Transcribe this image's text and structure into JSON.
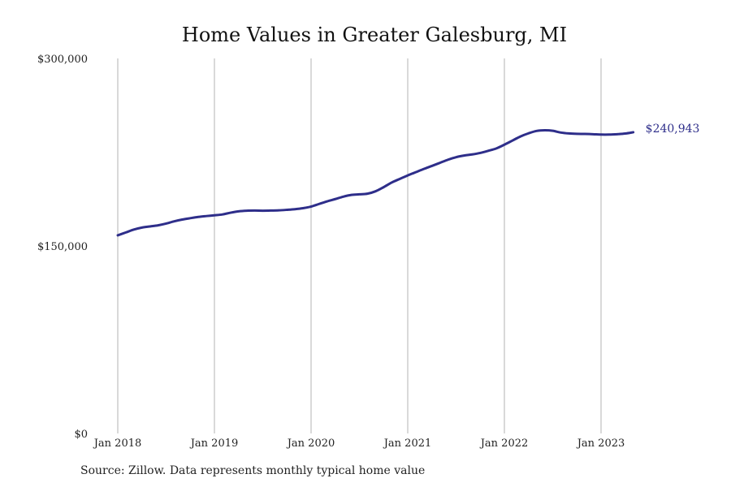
{
  "chart_data": {
    "type": "line",
    "title": "Home Values in Greater Galesburg, MI",
    "xlabel": "",
    "ylabel": "",
    "ylim": [
      0,
      300000
    ],
    "y_ticks": [
      0,
      150000,
      300000
    ],
    "y_tick_labels": [
      "$0",
      "$150,000",
      "$300,000"
    ],
    "x_range": [
      "2018-01",
      "2023-05"
    ],
    "x_ticks": [
      "2018-01",
      "2019-01",
      "2020-01",
      "2021-01",
      "2022-01",
      "2023-01"
    ],
    "x_tick_labels": [
      "Jan 2018",
      "Jan 2019",
      "Jan 2020",
      "Jan 2021",
      "Jan 2022",
      "Jan 2023"
    ],
    "grid": "vertical",
    "line_color": "#2e2e8a",
    "end_label": "$240,943",
    "series": [
      {
        "x": [
          "2018-01",
          "2018-02",
          "2018-03",
          "2018-04",
          "2018-05",
          "2018-06",
          "2018-07",
          "2018-08",
          "2018-09",
          "2018-10",
          "2018-11",
          "2018-12",
          "2019-01",
          "2019-02",
          "2019-03",
          "2019-04",
          "2019-05",
          "2019-06",
          "2019-07",
          "2019-08",
          "2019-09",
          "2019-10",
          "2019-11",
          "2019-12",
          "2020-01",
          "2020-02",
          "2020-03",
          "2020-04",
          "2020-05",
          "2020-06",
          "2020-07",
          "2020-08",
          "2020-09",
          "2020-10",
          "2020-11",
          "2020-12",
          "2021-01",
          "2021-02",
          "2021-03",
          "2021-04",
          "2021-05",
          "2021-06",
          "2021-07",
          "2021-08",
          "2021-09",
          "2021-10",
          "2021-11",
          "2021-12",
          "2022-01",
          "2022-02",
          "2022-03",
          "2022-04",
          "2022-05",
          "2022-06",
          "2022-07",
          "2022-08",
          "2022-09",
          "2022-10",
          "2022-11",
          "2022-12",
          "2023-01",
          "2023-02",
          "2023-03",
          "2023-04",
          "2023-05"
        ],
        "values": [
          158500,
          160800,
          163100,
          164700,
          165600,
          166500,
          167900,
          169700,
          171100,
          172200,
          173200,
          173900,
          174500,
          175200,
          176600,
          177700,
          178200,
          178300,
          178200,
          178300,
          178500,
          178900,
          179400,
          180200,
          181500,
          183600,
          185700,
          187500,
          189400,
          190800,
          191300,
          191800,
          193700,
          197000,
          200700,
          203600,
          206400,
          209000,
          211600,
          214000,
          216500,
          219000,
          221000,
          222300,
          223200,
          224400,
          226100,
          228000,
          231000,
          234300,
          237600,
          240100,
          242000,
          242500,
          242100,
          240700,
          240000,
          239700,
          239600,
          239400,
          239100,
          239100,
          239400,
          239900,
          240943
        ]
      }
    ]
  }
}
